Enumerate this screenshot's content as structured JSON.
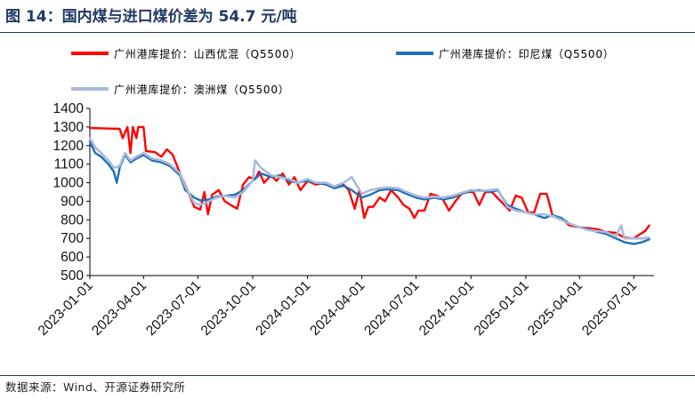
{
  "figure": {
    "title": "图 14：国内煤与进口煤价差为 54.7 元/吨",
    "source": "数据来源：Wind、开源证券研究所"
  },
  "colors": {
    "title": "#1f3864",
    "shanxi": "#ff0000",
    "indonesia": "#1f6fb5",
    "australia": "#a9b9dc"
  },
  "chart_data": {
    "type": "line",
    "title": "",
    "xlabel": "",
    "ylabel": "",
    "ylim": [
      500,
      1400
    ],
    "yticks": [
      500,
      600,
      700,
      800,
      900,
      1000,
      1100,
      1200,
      1300,
      1400
    ],
    "xlim": [
      "2023-01-01",
      "2025-08-01"
    ],
    "xticks": [
      "2023-01-01",
      "2023-04-01",
      "2023-07-01",
      "2023-10-01",
      "2024-01-01",
      "2024-04-01",
      "2024-07-01",
      "2024-10-01",
      "2025-01-01",
      "2025-04-01",
      "2025-07-01"
    ],
    "legend_position": "top",
    "grid": false,
    "series": [
      {
        "name": "广州港库提价：山西优混（Q5500）",
        "color": "#ff0000",
        "points": [
          [
            "2023-01-01",
            1295
          ],
          [
            "2023-02-20",
            1290
          ],
          [
            "2023-02-25",
            1240
          ],
          [
            "2023-03-05",
            1300
          ],
          [
            "2023-03-10",
            1160
          ],
          [
            "2023-03-14",
            1300
          ],
          [
            "2023-03-20",
            1240
          ],
          [
            "2023-03-23",
            1300
          ],
          [
            "2023-04-01",
            1300
          ],
          [
            "2023-04-05",
            1170
          ],
          [
            "2023-04-20",
            1165
          ],
          [
            "2023-05-01",
            1140
          ],
          [
            "2023-05-10",
            1180
          ],
          [
            "2023-05-20",
            1150
          ],
          [
            "2023-06-01",
            1050
          ],
          [
            "2023-06-15",
            950
          ],
          [
            "2023-06-25",
            870
          ],
          [
            "2023-07-05",
            855
          ],
          [
            "2023-07-12",
            950
          ],
          [
            "2023-07-18",
            830
          ],
          [
            "2023-07-25",
            935
          ],
          [
            "2023-08-05",
            960
          ],
          [
            "2023-08-15",
            900
          ],
          [
            "2023-08-25",
            880
          ],
          [
            "2023-09-05",
            860
          ],
          [
            "2023-09-15",
            990
          ],
          [
            "2023-09-25",
            1030
          ],
          [
            "2023-10-05",
            1020
          ],
          [
            "2023-10-12",
            1060
          ],
          [
            "2023-10-20",
            1000
          ],
          [
            "2023-11-01",
            1040
          ],
          [
            "2023-11-10",
            1010
          ],
          [
            "2023-11-20",
            1050
          ],
          [
            "2023-12-01",
            990
          ],
          [
            "2023-12-10",
            1030
          ],
          [
            "2023-12-20",
            960
          ],
          [
            "2024-01-01",
            1010
          ],
          [
            "2024-01-15",
            990
          ],
          [
            "2024-02-01",
            1000
          ],
          [
            "2024-02-15",
            975
          ],
          [
            "2024-03-01",
            990
          ],
          [
            "2024-03-10",
            960
          ],
          [
            "2024-03-20",
            860
          ],
          [
            "2024-03-28",
            960
          ],
          [
            "2024-04-05",
            810
          ],
          [
            "2024-04-12",
            870
          ],
          [
            "2024-04-20",
            870
          ],
          [
            "2024-05-01",
            920
          ],
          [
            "2024-05-10",
            900
          ],
          [
            "2024-05-20",
            960
          ],
          [
            "2024-06-01",
            920
          ],
          [
            "2024-06-10",
            880
          ],
          [
            "2024-06-20",
            860
          ],
          [
            "2024-06-28",
            810
          ],
          [
            "2024-07-05",
            850
          ],
          [
            "2024-07-15",
            850
          ],
          [
            "2024-07-25",
            940
          ],
          [
            "2024-08-05",
            930
          ],
          [
            "2024-08-15",
            910
          ],
          [
            "2024-08-25",
            850
          ],
          [
            "2024-09-05",
            900
          ],
          [
            "2024-09-15",
            940
          ],
          [
            "2024-09-25",
            950
          ],
          [
            "2024-10-05",
            950
          ],
          [
            "2024-10-15",
            880
          ],
          [
            "2024-10-25",
            950
          ],
          [
            "2024-11-05",
            950
          ],
          [
            "2024-11-20",
            900
          ],
          [
            "2024-12-05",
            850
          ],
          [
            "2024-12-15",
            930
          ],
          [
            "2024-12-25",
            920
          ],
          [
            "2025-01-05",
            840
          ],
          [
            "2025-01-15",
            840
          ],
          [
            "2025-01-25",
            940
          ],
          [
            "2025-02-05",
            940
          ],
          [
            "2025-02-15",
            820
          ],
          [
            "2025-03-01",
            810
          ],
          [
            "2025-03-15",
            770
          ],
          [
            "2025-04-01",
            760
          ],
          [
            "2025-04-15",
            755
          ],
          [
            "2025-05-01",
            750
          ],
          [
            "2025-05-15",
            735
          ],
          [
            "2025-06-01",
            730
          ],
          [
            "2025-06-15",
            705
          ],
          [
            "2025-07-01",
            700
          ],
          [
            "2025-07-10",
            720
          ],
          [
            "2025-07-20",
            740
          ],
          [
            "2025-07-27",
            770
          ]
        ]
      },
      {
        "name": "广州港库提价：印尼煤（Q5500）",
        "color": "#1f6fb5",
        "points": [
          [
            "2023-01-01",
            1220
          ],
          [
            "2023-01-10",
            1160
          ],
          [
            "2023-01-20",
            1140
          ],
          [
            "2023-02-01",
            1100
          ],
          [
            "2023-02-10",
            1060
          ],
          [
            "2023-02-15",
            1000
          ],
          [
            "2023-02-20",
            1080
          ],
          [
            "2023-03-01",
            1150
          ],
          [
            "2023-03-10",
            1110
          ],
          [
            "2023-03-20",
            1130
          ],
          [
            "2023-04-01",
            1150
          ],
          [
            "2023-04-15",
            1120
          ],
          [
            "2023-05-01",
            1110
          ],
          [
            "2023-05-15",
            1090
          ],
          [
            "2023-06-01",
            1040
          ],
          [
            "2023-06-10",
            960
          ],
          [
            "2023-06-25",
            920
          ],
          [
            "2023-07-05",
            905
          ],
          [
            "2023-07-20",
            910
          ],
          [
            "2023-08-01",
            925
          ],
          [
            "2023-08-15",
            930
          ],
          [
            "2023-09-01",
            935
          ],
          [
            "2023-09-15",
            960
          ],
          [
            "2023-10-01",
            1010
          ],
          [
            "2023-10-15",
            1050
          ],
          [
            "2023-11-01",
            1030
          ],
          [
            "2023-11-15",
            1040
          ],
          [
            "2023-12-01",
            1010
          ],
          [
            "2023-12-15",
            1000
          ],
          [
            "2024-01-01",
            1010
          ],
          [
            "2024-01-15",
            1000
          ],
          [
            "2024-02-01",
            990
          ],
          [
            "2024-02-15",
            970
          ],
          [
            "2024-03-01",
            985
          ],
          [
            "2024-03-15",
            960
          ],
          [
            "2024-04-01",
            920
          ],
          [
            "2024-04-15",
            935
          ],
          [
            "2024-05-01",
            960
          ],
          [
            "2024-05-15",
            965
          ],
          [
            "2024-06-01",
            960
          ],
          [
            "2024-06-15",
            940
          ],
          [
            "2024-07-01",
            920
          ],
          [
            "2024-07-15",
            910
          ],
          [
            "2024-08-01",
            920
          ],
          [
            "2024-08-15",
            910
          ],
          [
            "2024-09-01",
            920
          ],
          [
            "2024-09-15",
            940
          ],
          [
            "2024-10-01",
            955
          ],
          [
            "2024-10-15",
            960
          ],
          [
            "2024-11-01",
            950
          ],
          [
            "2024-11-15",
            960
          ],
          [
            "2024-12-01",
            880
          ],
          [
            "2024-12-15",
            860
          ],
          [
            "2025-01-01",
            840
          ],
          [
            "2025-01-15",
            830
          ],
          [
            "2025-02-01",
            810
          ],
          [
            "2025-02-15",
            825
          ],
          [
            "2025-03-01",
            810
          ],
          [
            "2025-03-15",
            780
          ],
          [
            "2025-04-01",
            760
          ],
          [
            "2025-04-15",
            750
          ],
          [
            "2025-05-01",
            735
          ],
          [
            "2025-05-15",
            725
          ],
          [
            "2025-06-01",
            700
          ],
          [
            "2025-06-15",
            680
          ],
          [
            "2025-07-01",
            670
          ],
          [
            "2025-07-15",
            680
          ],
          [
            "2025-07-27",
            695
          ]
        ]
      },
      {
        "name": "广州港库提价：澳洲煤（Q5500）",
        "color": "#a9b9dc",
        "points": [
          [
            "2023-01-01",
            1240
          ],
          [
            "2023-01-10",
            1190
          ],
          [
            "2023-01-20",
            1160
          ],
          [
            "2023-02-01",
            1120
          ],
          [
            "2023-02-10",
            1080
          ],
          [
            "2023-02-20",
            1090
          ],
          [
            "2023-03-01",
            1160
          ],
          [
            "2023-03-10",
            1120
          ],
          [
            "2023-03-20",
            1140
          ],
          [
            "2023-04-01",
            1160
          ],
          [
            "2023-04-15",
            1130
          ],
          [
            "2023-05-01",
            1120
          ],
          [
            "2023-05-15",
            1100
          ],
          [
            "2023-06-01",
            1050
          ],
          [
            "2023-06-10",
            980
          ],
          [
            "2023-06-25",
            890
          ],
          [
            "2023-07-05",
            880
          ],
          [
            "2023-07-20",
            900
          ],
          [
            "2023-08-01",
            920
          ],
          [
            "2023-08-15",
            930
          ],
          [
            "2023-09-01",
            920
          ],
          [
            "2023-09-15",
            950
          ],
          [
            "2023-10-01",
            1010
          ],
          [
            "2023-10-05",
            1120
          ],
          [
            "2023-10-15",
            1080
          ],
          [
            "2023-11-01",
            1040
          ],
          [
            "2023-11-15",
            1030
          ],
          [
            "2023-12-01",
            1020
          ],
          [
            "2023-12-15",
            1000
          ],
          [
            "2024-01-01",
            1020
          ],
          [
            "2024-01-15",
            1000
          ],
          [
            "2024-02-01",
            1000
          ],
          [
            "2024-02-15",
            980
          ],
          [
            "2024-03-01",
            1000
          ],
          [
            "2024-03-15",
            1030
          ],
          [
            "2024-04-01",
            940
          ],
          [
            "2024-04-15",
            960
          ],
          [
            "2024-05-01",
            970
          ],
          [
            "2024-05-15",
            975
          ],
          [
            "2024-06-01",
            970
          ],
          [
            "2024-06-15",
            950
          ],
          [
            "2024-07-01",
            930
          ],
          [
            "2024-07-15",
            920
          ],
          [
            "2024-08-01",
            925
          ],
          [
            "2024-08-15",
            920
          ],
          [
            "2024-09-01",
            930
          ],
          [
            "2024-09-15",
            945
          ],
          [
            "2024-10-01",
            960
          ],
          [
            "2024-10-15",
            955
          ],
          [
            "2024-11-01",
            960
          ],
          [
            "2024-11-15",
            965
          ],
          [
            "2024-12-01",
            870
          ],
          [
            "2024-12-15",
            850
          ],
          [
            "2025-01-01",
            840
          ],
          [
            "2025-01-15",
            830
          ],
          [
            "2025-02-01",
            830
          ],
          [
            "2025-02-15",
            820
          ],
          [
            "2025-03-01",
            800
          ],
          [
            "2025-03-15",
            780
          ],
          [
            "2025-04-01",
            760
          ],
          [
            "2025-04-15",
            745
          ],
          [
            "2025-05-01",
            740
          ],
          [
            "2025-05-15",
            735
          ],
          [
            "2025-06-01",
            710
          ],
          [
            "2025-06-10",
            770
          ],
          [
            "2025-06-15",
            700
          ],
          [
            "2025-07-01",
            700
          ],
          [
            "2025-07-15",
            700
          ],
          [
            "2025-07-27",
            705
          ]
        ]
      }
    ]
  }
}
